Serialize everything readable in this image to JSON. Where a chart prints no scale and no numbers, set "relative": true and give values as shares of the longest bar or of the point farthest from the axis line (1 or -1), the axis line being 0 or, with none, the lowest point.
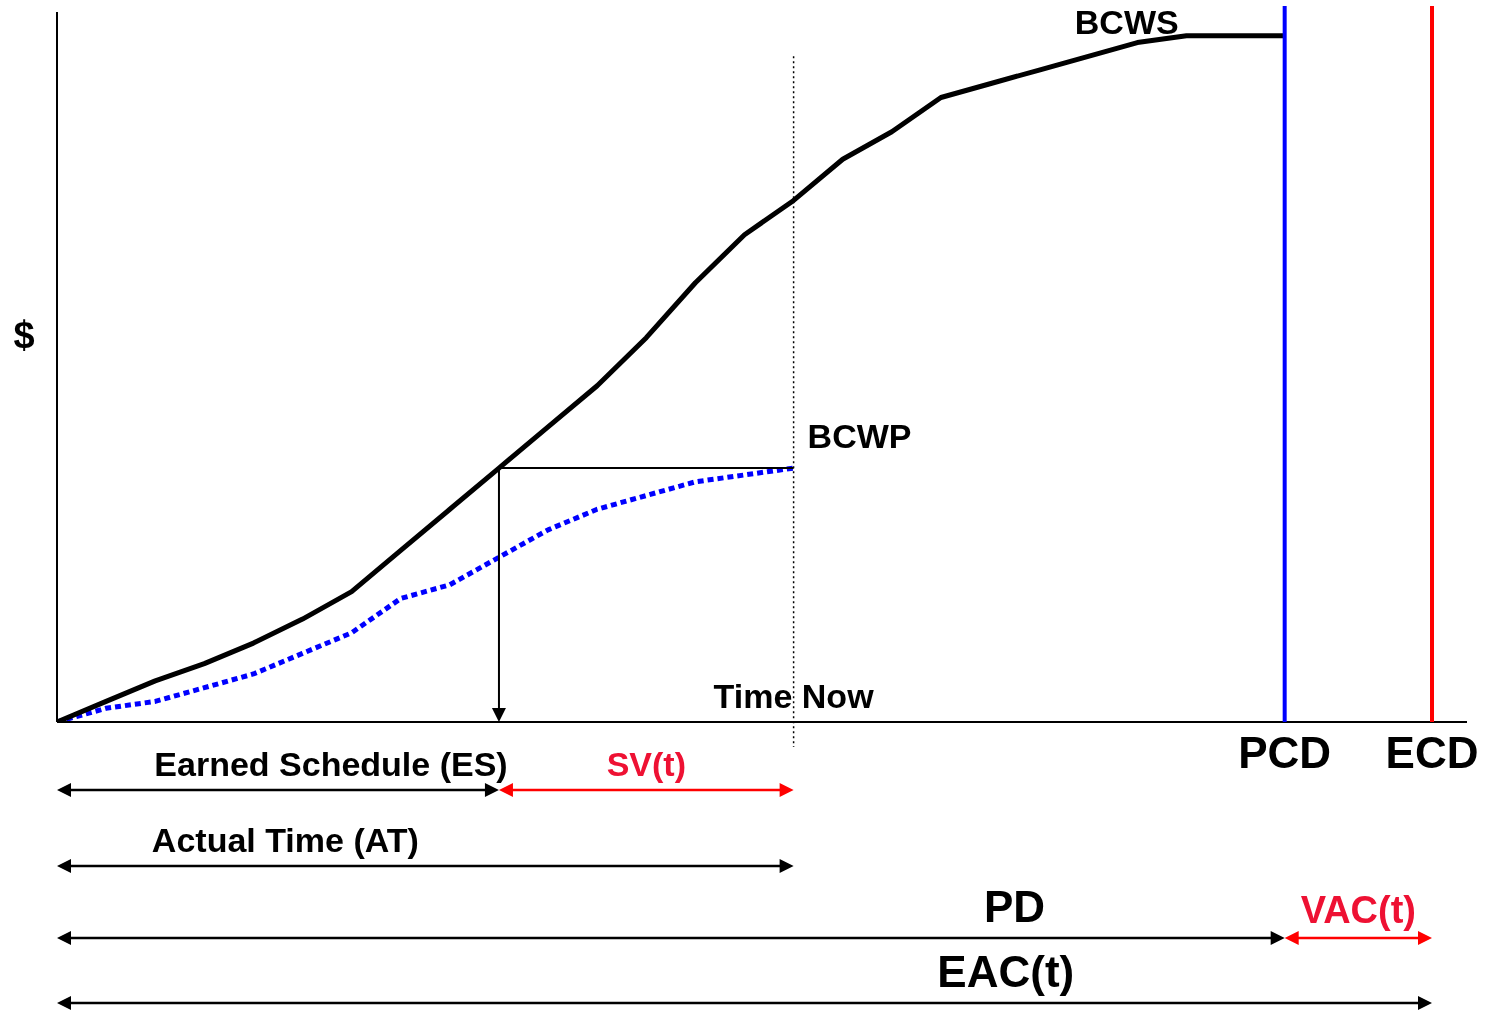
{
  "chart_data": {
    "type": "line",
    "relative": true,
    "ylabel": "$",
    "categories": [
      null,
      null,
      null,
      null,
      null,
      null,
      null,
      null,
      null,
      null,
      null,
      null,
      null,
      null,
      null,
      null,
      null,
      null,
      null,
      null,
      null,
      null,
      null,
      null,
      null,
      null,
      null,
      null,
      null
    ],
    "series": [
      {
        "name": "BCWS",
        "color": "#000000",
        "line_style": "solid",
        "values": [
          0,
          0.03,
          0.06,
          0.085,
          0.115,
          0.15,
          0.19,
          0.25,
          0.31,
          0.37,
          0.43,
          0.49,
          0.56,
          0.64,
          0.71,
          0.76,
          0.82,
          0.86,
          0.91,
          0.93,
          0.95,
          0.97,
          0.99,
          1,
          1,
          1,
          null,
          null,
          null
        ]
      },
      {
        "name": "BCWP",
        "color": "#0000ff",
        "line_style": "dotted",
        "values": [
          0,
          0.02,
          0.03,
          0.05,
          0.07,
          0.1,
          0.13,
          0.18,
          0.2,
          0.24,
          0.28,
          0.31,
          0.33,
          0.35,
          0.36,
          0.37,
          null,
          null,
          null,
          null,
          null,
          null,
          null,
          null,
          null,
          null,
          null,
          null,
          null
        ]
      }
    ],
    "annotations": [
      "Time Now",
      "PCD",
      "ECD",
      "Earned Schedule (ES)",
      "SV(t)",
      "Actual Time (AT)",
      "PD",
      "VAC(t)",
      "EAC(t)"
    ]
  }
}
